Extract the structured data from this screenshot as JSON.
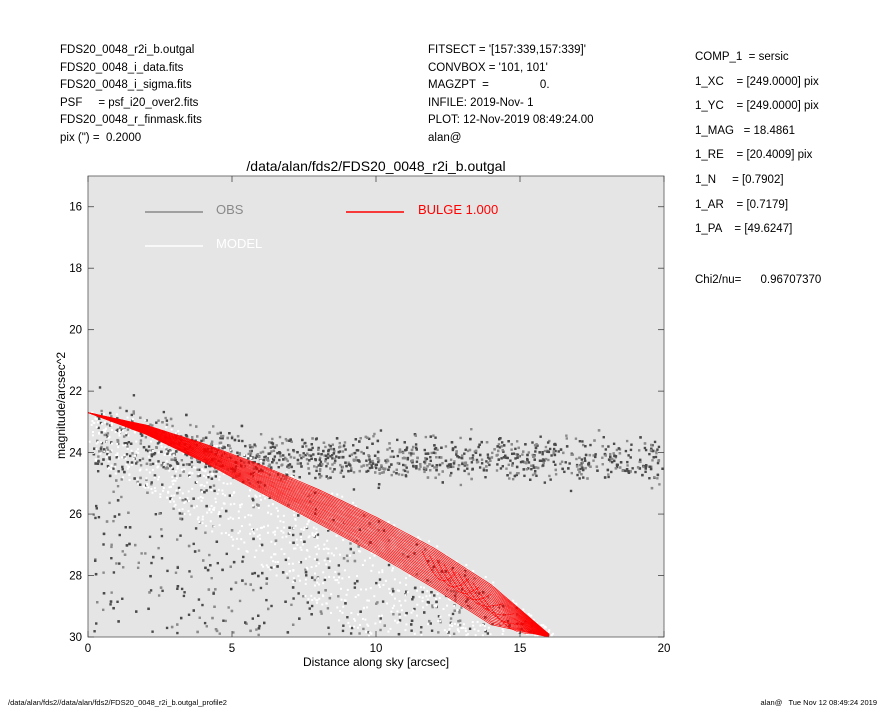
{
  "header_left": [
    "FDS20_0048_r2i_b.outgal",
    "FDS20_0048_i_data.fits",
    "FDS20_0048_i_sigma.fits",
    "PSF     = psf_i20_over2.fits",
    "FDS20_0048_r_finmask.fits",
    "pix (\") =  0.2000"
  ],
  "header_mid": [
    "FITSECT = '[157:339,157:339]'",
    "CONVBOX = '101, 101'",
    "MAGZPT  =                0.",
    "INFILE: 2019-Nov- 1",
    "PLOT: 12-Nov-2019 08:49:24.00",
    "alan@"
  ],
  "params": [
    "COMP_1  = sersic",
    "1_XC    = [249.0000] pix",
    "1_YC    = [249.0000] pix",
    "1_MAG   = 18.4861",
    "1_RE    = [20.4009] pix",
    "1_N     = [0.7902]",
    "1_AR    = [0.7179]",
    "1_PA    = [49.6247]"
  ],
  "chi_label": "Chi2/nu=",
  "chi_value": "0.96707370",
  "footer_left": "/data/alan/fds2//data/alan/fds2/FDS20_0048_r2i_b.outgal_profile2",
  "footer_right": "alan@   Tue Nov 12 08:49:24 2019",
  "colors": {
    "plot_bg": "#e5e5e5",
    "obs": "#8a8a8a",
    "obs_dark": "#4a4a4a",
    "model": "#ffffff",
    "bulge": "#ff0000"
  },
  "chart_data": {
    "type": "scatter",
    "title": "/data/alan/fds2/FDS20_0048_r2i_b.outgal",
    "xlabel": "Distance along sky [arcsec]",
    "ylabel": "magnitude/arcsec^2",
    "xlim": [
      0,
      20
    ],
    "ylim": [
      30,
      15
    ],
    "x_ticks": [
      0,
      5,
      10,
      15,
      20
    ],
    "y_ticks": [
      16,
      18,
      20,
      22,
      24,
      26,
      28,
      30
    ],
    "grid": false,
    "legend_position": "top",
    "legend": [
      {
        "name": "OBS",
        "color": "#8a8a8a"
      },
      {
        "name": "MODEL",
        "color": "#ffffff"
      },
      {
        "name": "BULGE  1.000",
        "color": "#ff0000"
      }
    ],
    "bulge_profile": {
      "inner_edge": {
        "x": [
          0,
          2,
          4,
          6,
          8,
          10,
          12,
          14,
          16
        ],
        "y": [
          22.7,
          23.1,
          23.7,
          24.4,
          25.2,
          26.1,
          27.1,
          28.3,
          29.9
        ]
      },
      "outer_edge": {
        "x": [
          0,
          2,
          4,
          6,
          8,
          10,
          12,
          14,
          16
        ],
        "y": [
          22.7,
          23.4,
          24.3,
          25.3,
          26.3,
          27.3,
          28.4,
          29.6,
          30.0
        ]
      }
    },
    "obs_sky_level": 24.2,
    "obs_profile_center": 22.6
  }
}
